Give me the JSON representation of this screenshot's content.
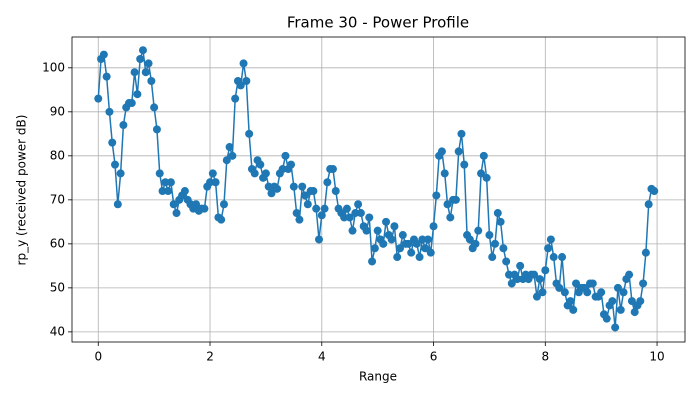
{
  "chart_data": {
    "type": "line",
    "title": "Frame 30 - Power Profile",
    "xlabel": "Range",
    "ylabel": "rp_y (received power dB)",
    "x": [
      0,
      0.05,
      0.1,
      0.15,
      0.2,
      0.25,
      0.3,
      0.35,
      0.4,
      0.45,
      0.5,
      0.55,
      0.6,
      0.65,
      0.7,
      0.75,
      0.8,
      0.85,
      0.9,
      0.95,
      1,
      1.05,
      1.1,
      1.15,
      1.2,
      1.25,
      1.3,
      1.35,
      1.4,
      1.45,
      1.5,
      1.55,
      1.6,
      1.65,
      1.7,
      1.75,
      1.8,
      1.85,
      1.9,
      1.95,
      2,
      2.05,
      2.1,
      2.15,
      2.2,
      2.25,
      2.3,
      2.35,
      2.4,
      2.45,
      2.5,
      2.55,
      2.6,
      2.65,
      2.7,
      2.75,
      2.8,
      2.85,
      2.9,
      2.95,
      3,
      3.05,
      3.1,
      3.15,
      3.2,
      3.25,
      3.3,
      3.35,
      3.4,
      3.45,
      3.5,
      3.55,
      3.6,
      3.65,
      3.7,
      3.75,
      3.8,
      3.85,
      3.9,
      3.95,
      4,
      4.05,
      4.1,
      4.15,
      4.2,
      4.25,
      4.3,
      4.35,
      4.4,
      4.45,
      4.5,
      4.55,
      4.6,
      4.65,
      4.7,
      4.75,
      4.8,
      4.85,
      4.9,
      4.95,
      5,
      5.05,
      5.1,
      5.15,
      5.2,
      5.25,
      5.3,
      5.35,
      5.4,
      5.45,
      5.5,
      5.55,
      5.6,
      5.65,
      5.7,
      5.75,
      5.8,
      5.85,
      5.9,
      5.95,
      6,
      6.05,
      6.1,
      6.15,
      6.2,
      6.25,
      6.3,
      6.35,
      6.4,
      6.45,
      6.5,
      6.55,
      6.6,
      6.65,
      6.7,
      6.75,
      6.8,
      6.85,
      6.9,
      6.95,
      7,
      7.05,
      7.1,
      7.15,
      7.2,
      7.25,
      7.3,
      7.35,
      7.4,
      7.45,
      7.5,
      7.55,
      7.6,
      7.65,
      7.7,
      7.75,
      7.8,
      7.85,
      7.9,
      7.95,
      8,
      8.05,
      8.1,
      8.15,
      8.2,
      8.25,
      8.3,
      8.35,
      8.4,
      8.45,
      8.5,
      8.55,
      8.6,
      8.65,
      8.7,
      8.75,
      8.8,
      8.85,
      8.9,
      8.95,
      9,
      9.05,
      9.1,
      9.15,
      9.2,
      9.25,
      9.3,
      9.35,
      9.4,
      9.45,
      9.5,
      9.55,
      9.6,
      9.65,
      9.7,
      9.75,
      9.8,
      9.85,
      9.9,
      9.95
    ],
    "values": [
      93,
      102,
      103,
      98,
      90,
      83,
      78,
      69,
      76,
      87,
      91,
      92,
      92,
      99,
      94,
      102,
      104,
      99,
      101,
      97,
      91,
      86,
      76,
      72,
      74,
      72,
      74,
      69,
      67,
      70,
      71,
      72,
      70,
      69,
      68,
      69,
      67.5,
      68,
      68,
      73,
      74,
      76,
      74,
      66,
      65.5,
      69,
      79,
      82,
      80,
      93,
      97,
      96,
      101,
      97,
      85,
      77,
      76,
      79,
      78,
      75,
      76,
      73,
      71.5,
      73,
      72.5,
      76,
      77,
      80,
      77,
      78,
      73,
      67,
      65.5,
      73,
      71,
      69,
      72,
      72,
      68,
      61,
      66.5,
      68,
      74,
      77,
      77,
      72,
      68,
      67,
      66,
      68,
      66,
      63,
      67,
      69,
      67,
      64,
      63,
      66,
      56,
      59,
      63,
      61,
      60,
      65,
      62,
      61,
      64,
      57,
      59,
      62,
      60,
      60,
      58,
      61,
      60,
      57,
      61,
      59,
      61,
      58,
      64,
      71,
      80,
      81,
      76,
      69,
      66,
      70,
      70,
      81,
      85,
      78,
      62,
      61,
      59,
      60,
      63,
      76,
      80,
      75,
      62,
      57,
      60,
      67,
      65,
      59,
      56,
      53,
      51,
      53,
      52,
      55,
      52,
      53,
      52,
      53,
      53,
      48,
      52,
      49,
      54,
      59,
      61,
      57,
      51,
      50,
      57,
      49,
      46,
      47,
      45,
      51,
      49,
      50,
      50,
      49,
      51,
      51,
      48,
      48,
      49,
      44,
      43,
      46,
      47,
      41,
      50,
      45,
      49,
      52,
      53,
      47,
      44.5,
      46,
      47,
      51,
      58,
      69,
      72.5,
      72
    ],
    "color": "#1f77b4",
    "xlim": [
      -0.47,
      10.5
    ],
    "ylim": [
      37.7,
      107
    ],
    "xticks": [
      0,
      2,
      4,
      6,
      8,
      10
    ],
    "yticks": [
      40,
      50,
      60,
      70,
      80,
      90,
      100
    ],
    "grid": true
  }
}
